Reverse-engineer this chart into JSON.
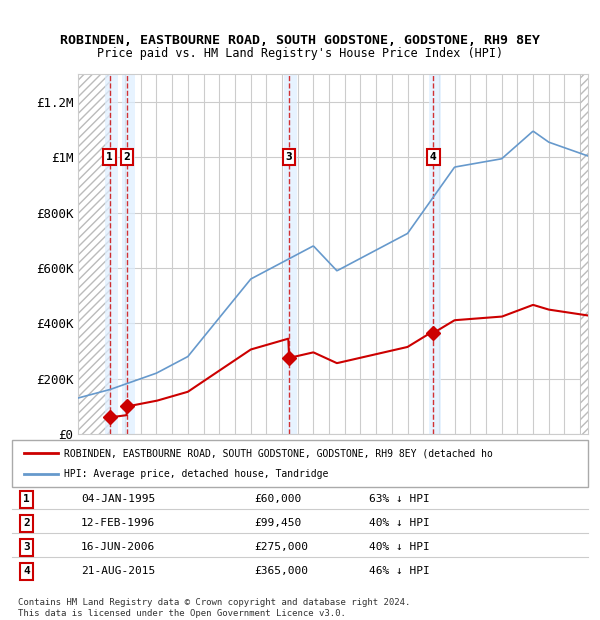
{
  "title": "ROBINDEN, EASTBOURNE ROAD, SOUTH GODSTONE, GODSTONE, RH9 8EY",
  "subtitle": "Price paid vs. HM Land Registry's House Price Index (HPI)",
  "ylim": [
    0,
    1300000
  ],
  "yticks": [
    0,
    200000,
    400000,
    600000,
    800000,
    1000000,
    1200000
  ],
  "ytick_labels": [
    "£0",
    "£200K",
    "£400K",
    "£600K",
    "£800K",
    "£1M",
    "£1.2M"
  ],
  "xstart": 1993.0,
  "xend": 2025.5,
  "transactions": [
    {
      "num": 1,
      "date_num": 1995.02,
      "price": 60000,
      "label": "04-JAN-1995",
      "price_str": "£60,000",
      "pct": "63% ↓ HPI"
    },
    {
      "num": 2,
      "date_num": 1996.12,
      "price": 99450,
      "label": "12-FEB-1996",
      "price_str": "£99,450",
      "pct": "40% ↓ HPI"
    },
    {
      "num": 3,
      "date_num": 2006.45,
      "price": 275000,
      "label": "16-JUN-2006",
      "price_str": "£275,000",
      "pct": "40% ↓ HPI"
    },
    {
      "num": 4,
      "date_num": 2015.64,
      "price": 365000,
      "label": "21-AUG-2015",
      "price_str": "£365,000",
      "pct": "46% ↓ HPI"
    }
  ],
  "red_line_color": "#cc0000",
  "blue_line_color": "#6699cc",
  "shade_color": "#ddeeff",
  "legend_label_red": "ROBINDEN, EASTBOURNE ROAD, SOUTH GODSTONE, GODSTONE, RH9 8EY (detached ho",
  "legend_label_blue": "HPI: Average price, detached house, Tandridge",
  "footer": "Contains HM Land Registry data © Crown copyright and database right 2024.\nThis data is licensed under the Open Government Licence v3.0."
}
